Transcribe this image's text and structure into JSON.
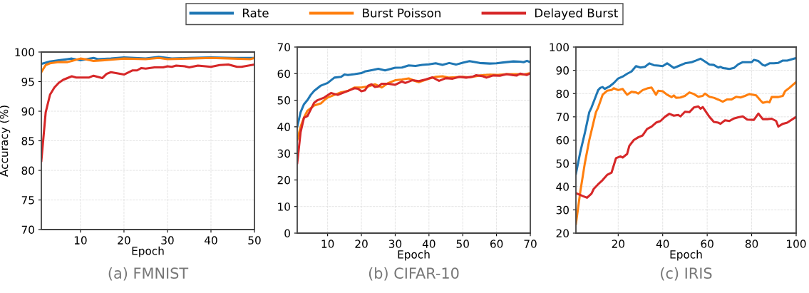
{
  "chart_data": [
    {
      "type": "line",
      "xlabel": "Epoch",
      "ylabel": "Accuracy (%)",
      "xlim": [
        1,
        50
      ],
      "xticks": [
        10,
        20,
        30,
        40,
        50
      ],
      "ylim": [
        70,
        100
      ],
      "yticks": [
        70,
        75,
        80,
        85,
        90,
        95,
        100
      ],
      "grid": true,
      "legend": "top",
      "annotations": [
        "(a) FMNIST"
      ],
      "series": [
        {
          "name": "Rate",
          "color": "#1f77b4",
          "x": [
            1,
            3,
            5,
            7,
            8,
            10,
            13,
            14,
            17,
            20,
            25,
            28,
            31,
            35,
            40,
            45,
            50
          ],
          "values": [
            98.0,
            98.4,
            98.6,
            98.8,
            98.9,
            98.6,
            99.0,
            98.8,
            98.9,
            99.1,
            98.9,
            99.2,
            98.9,
            99.0,
            99.1,
            99.0,
            99.0
          ]
        },
        {
          "name": "Burst Poisson",
          "color": "#ff7f0e",
          "x": [
            1,
            2,
            3,
            5,
            7,
            8,
            10,
            11,
            13,
            15,
            17,
            20,
            25,
            28,
            30,
            35,
            40,
            45,
            49,
            50
          ],
          "values": [
            96.6,
            97.8,
            98.1,
            98.3,
            98.3,
            98.5,
            98.9,
            98.8,
            98.5,
            98.6,
            98.7,
            98.9,
            98.8,
            99.0,
            98.8,
            98.9,
            99.0,
            98.9,
            98.8,
            99.0
          ]
        },
        {
          "name": "Delayed Burst",
          "color": "#d62728",
          "x": [
            1,
            2,
            3,
            4,
            5,
            6,
            7,
            8,
            9,
            11,
            12,
            13,
            15,
            16,
            17,
            20,
            22,
            23,
            24,
            25,
            27,
            29,
            30,
            31,
            32,
            34,
            35,
            37,
            40,
            42,
            44,
            46,
            47,
            50
          ],
          "values": [
            81.6,
            89.8,
            92.8,
            94.0,
            94.8,
            95.3,
            95.6,
            95.9,
            95.7,
            95.7,
            95.7,
            96.0,
            95.6,
            96.3,
            96.6,
            96.2,
            96.9,
            96.9,
            97.3,
            97.2,
            97.4,
            97.4,
            97.6,
            97.5,
            97.7,
            97.6,
            97.4,
            97.7,
            97.5,
            97.8,
            97.9,
            97.5,
            97.5,
            97.9
          ]
        }
      ]
    },
    {
      "type": "line",
      "xlabel": "Epoch",
      "xlim": [
        1,
        70
      ],
      "xticks": [
        10,
        20,
        30,
        40,
        50,
        60,
        70
      ],
      "ylim": [
        0,
        70
      ],
      "yticks": [
        0,
        10,
        20,
        30,
        40,
        50,
        60,
        70
      ],
      "grid": true,
      "legend": "top",
      "annotations": [
        "(b) CIFAR-10"
      ],
      "series": [
        {
          "name": "Rate",
          "color": "#1f77b4",
          "x": [
            1,
            2,
            3,
            4,
            5,
            6,
            8,
            10,
            11,
            12,
            14,
            15,
            16,
            18,
            20,
            21,
            23,
            25,
            27,
            30,
            32,
            34,
            36,
            38,
            40,
            42,
            44,
            46,
            48,
            50,
            52,
            55,
            58,
            60,
            62,
            65,
            67,
            68,
            69,
            70
          ],
          "values": [
            40,
            45.5,
            48.5,
            50,
            52,
            53.5,
            55.5,
            56.5,
            57.5,
            58.5,
            58.8,
            59.7,
            59.5,
            59.8,
            60.2,
            60.8,
            61.3,
            61.8,
            61.2,
            62.2,
            62.3,
            63.1,
            62.9,
            63.3,
            63.5,
            63.9,
            63.3,
            64.0,
            63.4,
            64.1,
            64.7,
            64.0,
            63.8,
            63.9,
            64.2,
            64.6,
            64.5,
            64.3,
            64.8,
            64.3
          ]
        },
        {
          "name": "Burst Poisson",
          "color": "#ff7f0e",
          "x": [
            1,
            2,
            3,
            4,
            6,
            8,
            9,
            10,
            12,
            14,
            16,
            18,
            20,
            22,
            24,
            26,
            28,
            30,
            32,
            34,
            36,
            37,
            40,
            42,
            44,
            46,
            50,
            52,
            55,
            58,
            60,
            63,
            66,
            68,
            70
          ],
          "values": [
            35,
            40,
            43.5,
            46,
            48,
            48.8,
            50,
            51,
            52,
            53,
            53.5,
            54.8,
            54.8,
            55.2,
            56,
            54.8,
            56.5,
            57.5,
            57.8,
            58.2,
            57.2,
            56.8,
            58.1,
            58.8,
            59,
            58.5,
            58.8,
            58.6,
            59.3,
            59.6,
            59.5,
            59.8,
            59.8,
            59.7,
            60.2
          ]
        },
        {
          "name": "Delayed Burst",
          "color": "#d62728",
          "x": [
            1,
            2,
            3,
            4,
            5,
            6,
            7,
            9,
            11,
            13,
            15,
            17,
            18,
            19,
            20,
            21,
            22,
            23,
            24,
            25,
            26,
            28,
            30,
            32,
            33,
            35,
            37,
            39,
            41,
            43,
            45,
            47,
            49,
            51,
            53,
            54,
            56,
            57,
            59,
            61,
            63,
            65,
            66,
            67,
            69,
            70
          ],
          "values": [
            26.3,
            38,
            43.4,
            44,
            46.5,
            49,
            50,
            51,
            52.7,
            52,
            53,
            54,
            54.5,
            54.3,
            53.4,
            53.7,
            55.5,
            56,
            55,
            55.2,
            56.2,
            56.2,
            55.8,
            57,
            56.5,
            57.5,
            57.2,
            57.8,
            58.6,
            57.3,
            58.3,
            58.1,
            58.8,
            58.5,
            58.9,
            59.4,
            59.0,
            58.5,
            59.3,
            59.2,
            59.8,
            59.4,
            59.3,
            60.0,
            59.5,
            60.1
          ]
        }
      ]
    },
    {
      "type": "line",
      "xlabel": "Epoch",
      "xlim": [
        1,
        100
      ],
      "xticks": [
        20,
        40,
        60,
        80,
        100
      ],
      "ylim": [
        20,
        100
      ],
      "yticks": [
        20,
        30,
        40,
        50,
        60,
        70,
        80,
        90,
        100
      ],
      "grid": true,
      "legend": "top",
      "annotations": [
        "(c) IRIS"
      ],
      "series": [
        {
          "name": "Rate",
          "color": "#1f77b4",
          "x": [
            1,
            3,
            5,
            7,
            8,
            10,
            11,
            12,
            13,
            14,
            16,
            18,
            20,
            22,
            24,
            26,
            28,
            30,
            32,
            34,
            36,
            38,
            40,
            42,
            45,
            47,
            50,
            53,
            55,
            57,
            59,
            61,
            63,
            65,
            66,
            67,
            70,
            72,
            74,
            76,
            78,
            80,
            81,
            83,
            85,
            86,
            88,
            90,
            92,
            94,
            96,
            100
          ],
          "values": [
            45.5,
            55,
            63,
            72,
            74,
            79,
            81.5,
            82.5,
            82.8,
            82,
            83,
            84.5,
            86.5,
            87.3,
            88.5,
            89.5,
            91.8,
            91.2,
            91.5,
            93,
            92.2,
            92,
            91.8,
            93,
            91,
            91.8,
            93,
            93.5,
            94.2,
            95,
            93.8,
            92.5,
            92.3,
            91.2,
            91.5,
            91,
            90.6,
            91,
            92.6,
            93.5,
            93.5,
            93.5,
            94.5,
            94,
            92.3,
            92,
            93,
            93,
            93.2,
            94.2,
            94.2,
            95.3
          ]
        },
        {
          "name": "Burst Poisson",
          "color": "#ff7f0e",
          "x": [
            1,
            3,
            5,
            7,
            9,
            10,
            11,
            13,
            15,
            17,
            18,
            20,
            22,
            24,
            26,
            28,
            29,
            31,
            33,
            35,
            37,
            38,
            40,
            42,
            44,
            45,
            46,
            48,
            50,
            52,
            54,
            56,
            58,
            59,
            61,
            63,
            65,
            67,
            69,
            71,
            73,
            75,
            77,
            79,
            82,
            84,
            85,
            87,
            88,
            89,
            92,
            94,
            95,
            97,
            100
          ],
          "values": [
            24,
            38,
            50,
            60,
            68,
            72,
            74,
            79.5,
            81.2,
            81.5,
            82.3,
            81.5,
            82,
            79.5,
            80.8,
            80.5,
            80,
            81.5,
            82.2,
            82.6,
            79.5,
            81.2,
            81,
            79.5,
            78.5,
            79.2,
            78.2,
            78.3,
            79,
            80.5,
            79.8,
            78.6,
            79,
            80,
            78.6,
            78.2,
            77.4,
            76.5,
            77.5,
            77.5,
            78.6,
            78.3,
            79,
            79.8,
            79.2,
            77,
            76,
            76.5,
            76.2,
            78.5,
            78.5,
            79,
            81,
            82.5,
            85
          ]
        },
        {
          "name": "Delayed Burst",
          "color": "#d62728",
          "x": [
            1,
            4,
            6,
            8,
            9,
            11,
            13,
            15,
            17,
            19,
            21,
            22,
            24,
            25,
            27,
            29,
            31,
            33,
            35,
            37,
            39,
            41,
            43,
            45,
            47,
            48,
            50,
            52,
            54,
            56,
            57,
            58,
            61,
            63,
            65,
            66,
            68,
            70,
            72,
            74,
            76,
            78,
            81,
            83,
            85,
            87,
            89,
            91,
            92,
            94,
            96,
            100
          ],
          "values": [
            37.2,
            36,
            35.2,
            37,
            39,
            41,
            42.8,
            45,
            46,
            52.2,
            53,
            52.5,
            54,
            57.5,
            60,
            61.2,
            62,
            64.8,
            65.8,
            67.5,
            68.2,
            70,
            71.3,
            70.5,
            70.8,
            70.2,
            72.2,
            72,
            74,
            74.5,
            73.5,
            74.2,
            70,
            67.8,
            67.5,
            67,
            68.5,
            68.2,
            69.3,
            69.8,
            70.2,
            68.8,
            68.7,
            71.4,
            69,
            69,
            69.2,
            68.2,
            65.8,
            67,
            67.5,
            70
          ]
        }
      ]
    }
  ]
}
